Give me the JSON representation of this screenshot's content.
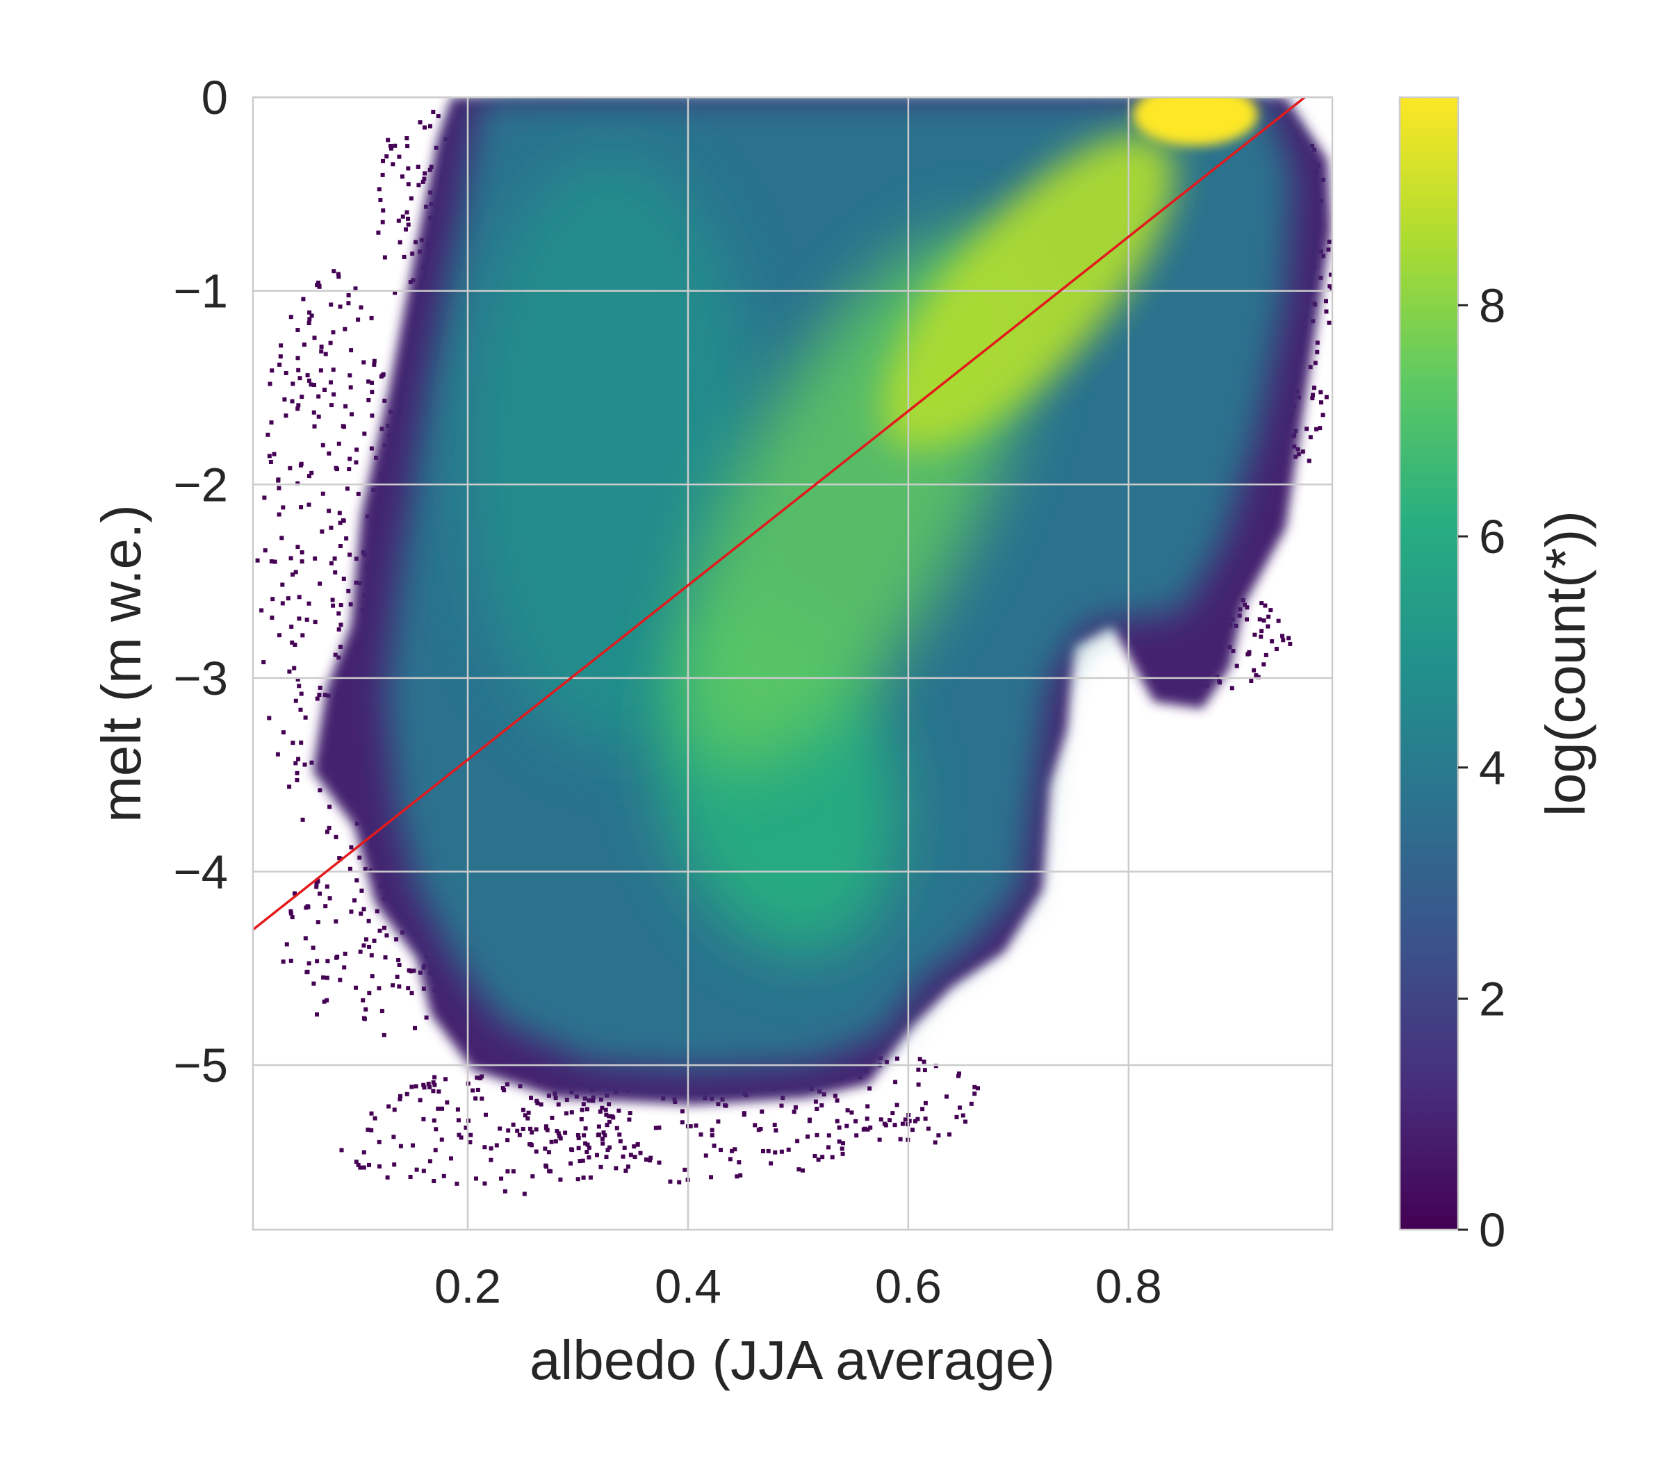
{
  "chart_data": {
    "type": "heatmap",
    "title": "",
    "xlabel": "albedo (JJA average)",
    "ylabel": "melt (m w.e.)",
    "xlim": [
      0.005,
      0.985
    ],
    "ylim": [
      -5.85,
      0.0
    ],
    "x_ticks": [
      0.2,
      0.4,
      0.6,
      0.8
    ],
    "x_tick_labels": [
      "0.2",
      "0.4",
      "0.6",
      "0.8"
    ],
    "y_ticks": [
      0,
      -1,
      -2,
      -3,
      -4,
      -5
    ],
    "y_tick_labels": [
      "0",
      "−1",
      "−2",
      "−3",
      "−4",
      "−5"
    ],
    "grid": true,
    "colormap": "viridis",
    "colorbar": {
      "label": "log(count(*))",
      "range": [
        0,
        9.8
      ],
      "ticks": [
        0,
        2,
        4,
        6,
        8
      ],
      "tick_labels": [
        "0",
        "2",
        "4",
        "6",
        "8"
      ]
    },
    "density_regions": [
      {
        "region": "upper-right band along fit, albedo 0.6-0.8, melt -1.5 to -0.5",
        "log_count": 9.0
      },
      {
        "region": "peak, albedo ~0.87, melt ~-0.1",
        "log_count": 9.8
      },
      {
        "region": "central band, albedo 0.45-0.6, melt -3.5 to -2",
        "log_count": 7.0
      },
      {
        "region": "left body, albedo 0.2-0.4, melt -4.5 to -0.5",
        "log_count": 5.2
      },
      {
        "region": "outer fringe",
        "log_count": 0.5
      }
    ],
    "fit_line": {
      "color": "#e31a1c",
      "points": [
        [
          0.005,
          -4.3
        ],
        [
          0.96,
          0.0
        ]
      ]
    }
  },
  "colors": {
    "fit_line": "#e31a1c",
    "grid": "#cccccc",
    "axes_edge": "#cccccc",
    "text": "#262626"
  }
}
